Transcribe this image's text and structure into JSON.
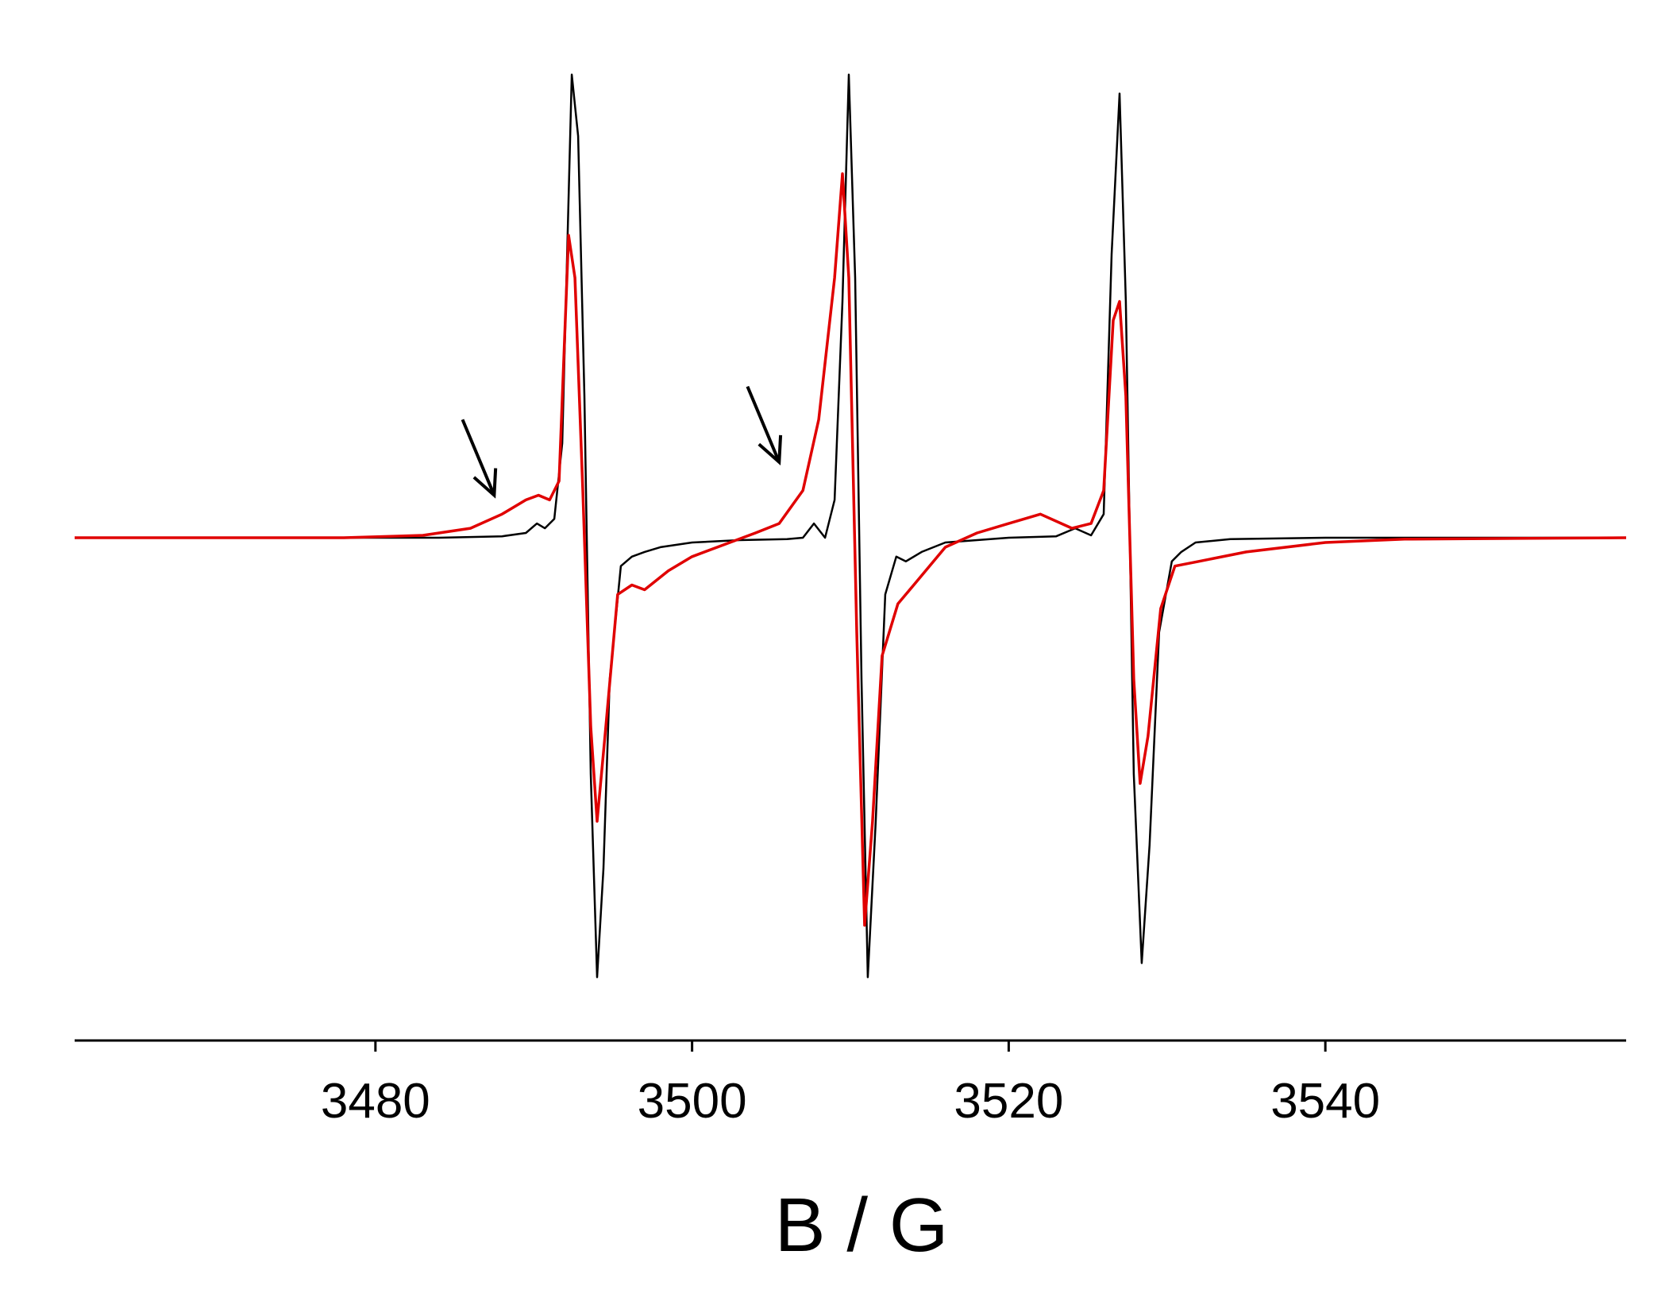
{
  "chart_data": {
    "type": "line",
    "title": "",
    "xlabel": "B / G",
    "ylabel": "",
    "xlim": [
      3461,
      3559
    ],
    "ylim": [
      -1.0,
      1.0
    ],
    "xticks": [
      3480,
      3500,
      3520,
      3540
    ],
    "x_tick_labels": [
      "3480",
      "3500",
      "3520",
      "3540"
    ],
    "grid": false,
    "legend": "none",
    "series": [
      {
        "color": "#000000",
        "points": [
          [
            3461,
            0
          ],
          [
            3475,
            0
          ],
          [
            3484,
            0
          ],
          [
            3488,
            0.003
          ],
          [
            3489.5,
            0.01
          ],
          [
            3490.2,
            0.03
          ],
          [
            3490.7,
            0.02
          ],
          [
            3491.3,
            0.04
          ],
          [
            3491.8,
            0.2
          ],
          [
            3492.4,
            0.98
          ],
          [
            3492.8,
            0.85
          ],
          [
            3493.2,
            0.3
          ],
          [
            3493.6,
            -0.5
          ],
          [
            3494.0,
            -0.93
          ],
          [
            3494.4,
            -0.7
          ],
          [
            3494.8,
            -0.3
          ],
          [
            3495.5,
            -0.06
          ],
          [
            3496.2,
            -0.04
          ],
          [
            3497,
            -0.03
          ],
          [
            3498,
            -0.02
          ],
          [
            3500,
            -0.01
          ],
          [
            3503,
            -0.005
          ],
          [
            3506,
            -0.003
          ],
          [
            3507,
            0.0
          ],
          [
            3507.7,
            0.03
          ],
          [
            3508.4,
            0.0
          ],
          [
            3509.0,
            0.08
          ],
          [
            3509.5,
            0.5
          ],
          [
            3509.9,
            0.98
          ],
          [
            3510.3,
            0.55
          ],
          [
            3510.7,
            -0.3
          ],
          [
            3511.1,
            -0.93
          ],
          [
            3511.6,
            -0.6
          ],
          [
            3512.2,
            -0.12
          ],
          [
            3512.9,
            -0.04
          ],
          [
            3513.5,
            -0.05
          ],
          [
            3514.5,
            -0.03
          ],
          [
            3516,
            -0.01
          ],
          [
            3520,
            0.0
          ],
          [
            3523,
            0.003
          ],
          [
            3524.2,
            0.02
          ],
          [
            3525.2,
            0.005
          ],
          [
            3526.0,
            0.05
          ],
          [
            3526.5,
            0.6
          ],
          [
            3527.0,
            0.94
          ],
          [
            3527.4,
            0.5
          ],
          [
            3527.9,
            -0.5
          ],
          [
            3528.4,
            -0.9
          ],
          [
            3528.9,
            -0.65
          ],
          [
            3529.5,
            -0.2
          ],
          [
            3530.3,
            -0.05
          ],
          [
            3530.9,
            -0.03
          ],
          [
            3531.8,
            -0.01
          ],
          [
            3534,
            -0.003
          ],
          [
            3540,
            0.0
          ],
          [
            3559,
            0
          ]
        ]
      },
      {
        "color": "#e00000",
        "points": [
          [
            3461,
            0
          ],
          [
            3478,
            0
          ],
          [
            3483,
            0.005
          ],
          [
            3486,
            0.02
          ],
          [
            3488,
            0.05
          ],
          [
            3489.5,
            0.08
          ],
          [
            3490.3,
            0.09
          ],
          [
            3491,
            0.08
          ],
          [
            3491.6,
            0.12
          ],
          [
            3492.2,
            0.64
          ],
          [
            3492.6,
            0.55
          ],
          [
            3493.1,
            0.1
          ],
          [
            3493.6,
            -0.4
          ],
          [
            3494.0,
            -0.6
          ],
          [
            3494.5,
            -0.42
          ],
          [
            3495.3,
            -0.12
          ],
          [
            3496.2,
            -0.1
          ],
          [
            3497,
            -0.11
          ],
          [
            3498.5,
            -0.07
          ],
          [
            3500,
            -0.04
          ],
          [
            3502,
            -0.015
          ],
          [
            3504,
            0.01
          ],
          [
            3505.5,
            0.03
          ],
          [
            3507,
            0.1
          ],
          [
            3508,
            0.25
          ],
          [
            3509.0,
            0.55
          ],
          [
            3509.5,
            0.77
          ],
          [
            3509.9,
            0.55
          ],
          [
            3510.4,
            -0.2
          ],
          [
            3510.9,
            -0.82
          ],
          [
            3511.4,
            -0.6
          ],
          [
            3512.0,
            -0.25
          ],
          [
            3513.0,
            -0.14
          ],
          [
            3514.0,
            -0.1
          ],
          [
            3516,
            -0.02
          ],
          [
            3518,
            0.01
          ],
          [
            3520,
            0.03
          ],
          [
            3522,
            0.05
          ],
          [
            3524,
            0.02
          ],
          [
            3525.2,
            0.03
          ],
          [
            3526.0,
            0.1
          ],
          [
            3526.6,
            0.46
          ],
          [
            3527.0,
            0.5
          ],
          [
            3527.4,
            0.3
          ],
          [
            3527.9,
            -0.3
          ],
          [
            3528.3,
            -0.52
          ],
          [
            3528.8,
            -0.42
          ],
          [
            3529.6,
            -0.15
          ],
          [
            3530.5,
            -0.06
          ],
          [
            3532,
            -0.05
          ],
          [
            3535,
            -0.03
          ],
          [
            3540,
            -0.01
          ],
          [
            3545,
            -0.003
          ],
          [
            3559,
            0
          ]
        ]
      }
    ],
    "annotations": [
      {
        "type": "arrow",
        "from": [
          3485.5,
          0.25
        ],
        "to": [
          3487.5,
          0.09
        ]
      },
      {
        "type": "arrow",
        "from": [
          3503.5,
          0.32
        ],
        "to": [
          3505.5,
          0.16
        ]
      }
    ]
  }
}
